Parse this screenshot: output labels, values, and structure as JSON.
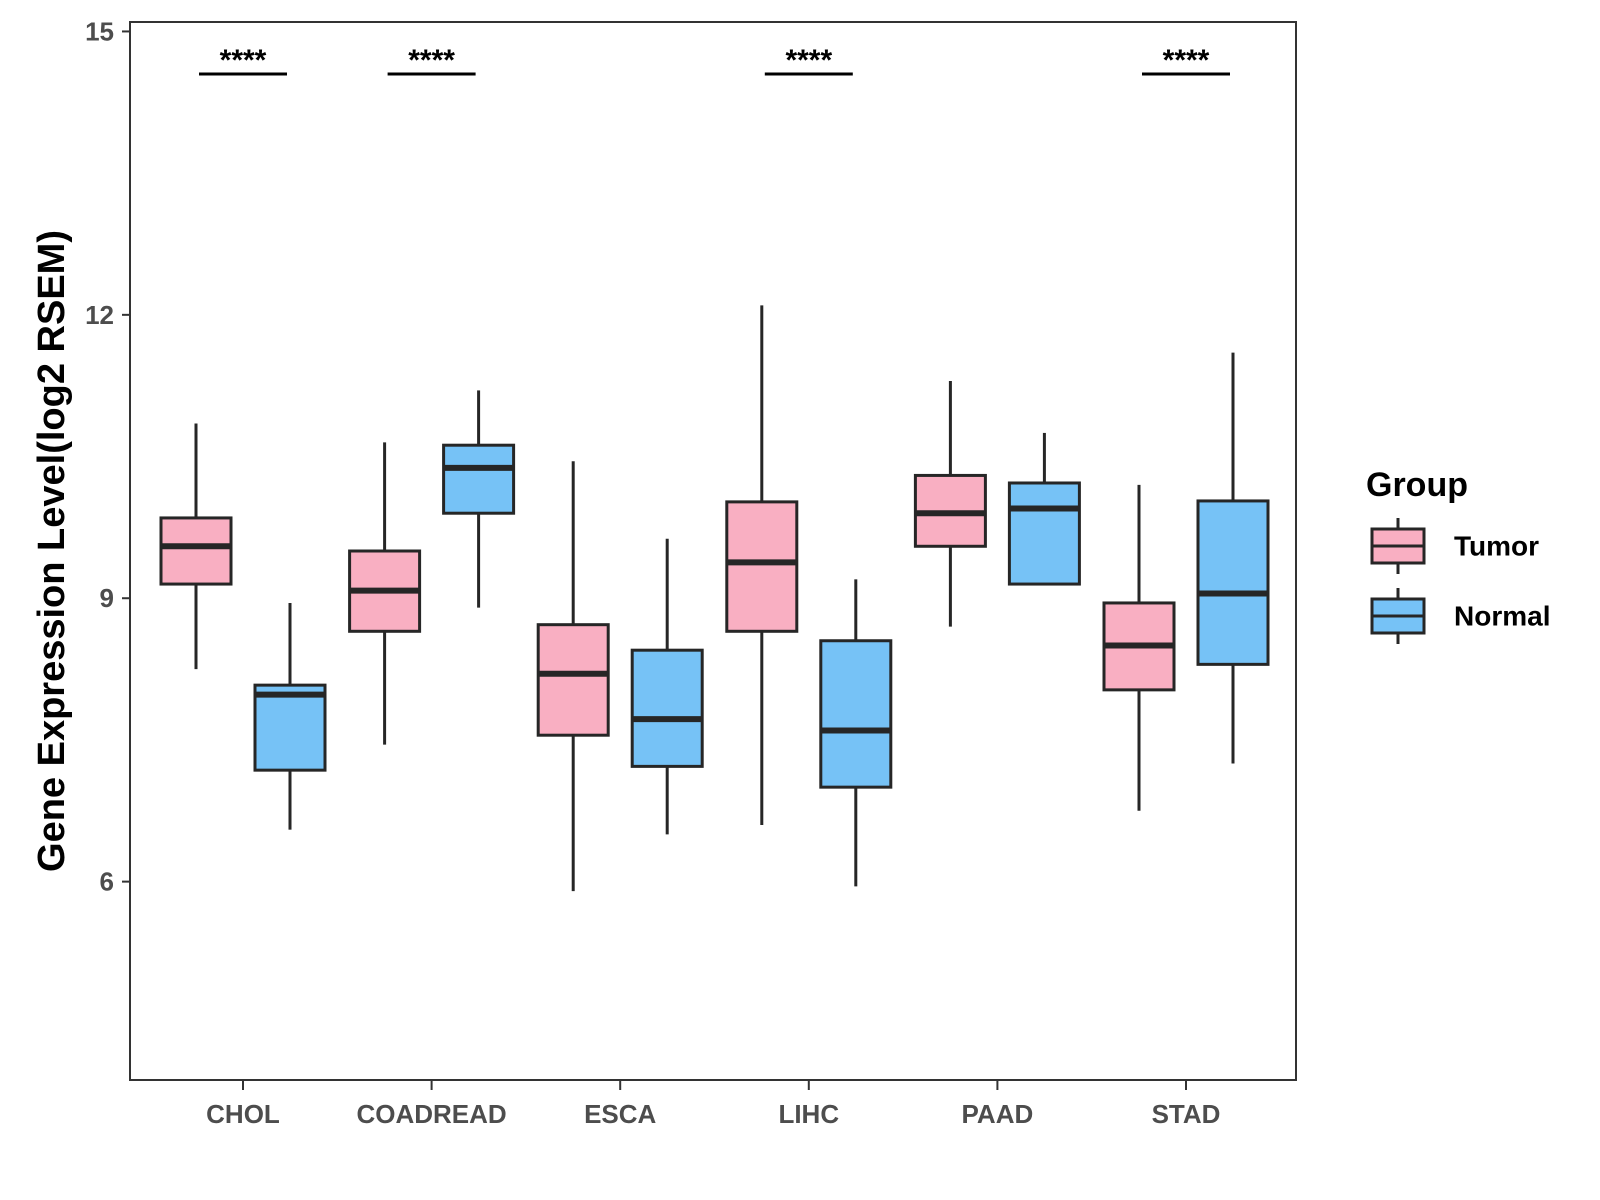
{
  "chart_data": {
    "type": "boxplot",
    "title": "",
    "xlabel": "",
    "ylabel": "Gene Expression Level(log2 RSEM)",
    "ylim": [
      3.9,
      15.1
    ],
    "yticks": [
      6,
      9,
      12,
      15
    ],
    "ytick_labels": [
      "6",
      "9",
      "12",
      "15"
    ],
    "categories": [
      "CHOL",
      "COADREAD",
      "ESCA",
      "LIHC",
      "PAAD",
      "STAD"
    ],
    "significance": [
      "****",
      "****",
      "",
      "****",
      "",
      "****"
    ],
    "legend": {
      "title": "Group",
      "position": "right"
    },
    "series": [
      {
        "name": "Tumor",
        "color": "#F9AFC2",
        "boxes": [
          {
            "min": 8.25,
            "q1": 9.15,
            "median": 9.55,
            "q3": 9.85,
            "max": 10.85
          },
          {
            "min": 7.45,
            "q1": 8.65,
            "median": 9.08,
            "q3": 9.5,
            "max": 10.65
          },
          {
            "min": 5.9,
            "q1": 7.55,
            "median": 8.2,
            "q3": 8.72,
            "max": 10.45
          },
          {
            "min": 6.6,
            "q1": 8.65,
            "median": 9.38,
            "q3": 10.02,
            "max": 12.1
          },
          {
            "min": 8.7,
            "q1": 9.55,
            "median": 9.9,
            "q3": 10.3,
            "max": 11.3
          },
          {
            "min": 6.75,
            "q1": 8.03,
            "median": 8.5,
            "q3": 8.95,
            "max": 10.2
          }
        ]
      },
      {
        "name": "Normal",
        "color": "#76C2F6",
        "boxes": [
          {
            "min": 6.55,
            "q1": 7.18,
            "median": 7.98,
            "q3": 8.08,
            "max": 8.95
          },
          {
            "min": 8.9,
            "q1": 9.9,
            "median": 10.38,
            "q3": 10.62,
            "max": 11.2
          },
          {
            "min": 6.5,
            "q1": 7.22,
            "median": 7.72,
            "q3": 8.45,
            "max": 9.63
          },
          {
            "min": 5.95,
            "q1": 7.0,
            "median": 7.6,
            "q3": 8.55,
            "max": 9.2
          },
          {
            "min": 9.15,
            "q1": 9.15,
            "median": 9.95,
            "q3": 10.22,
            "max": 10.75
          },
          {
            "min": 7.25,
            "q1": 8.3,
            "median": 9.05,
            "q3": 10.03,
            "max": 11.6
          }
        ]
      }
    ]
  }
}
